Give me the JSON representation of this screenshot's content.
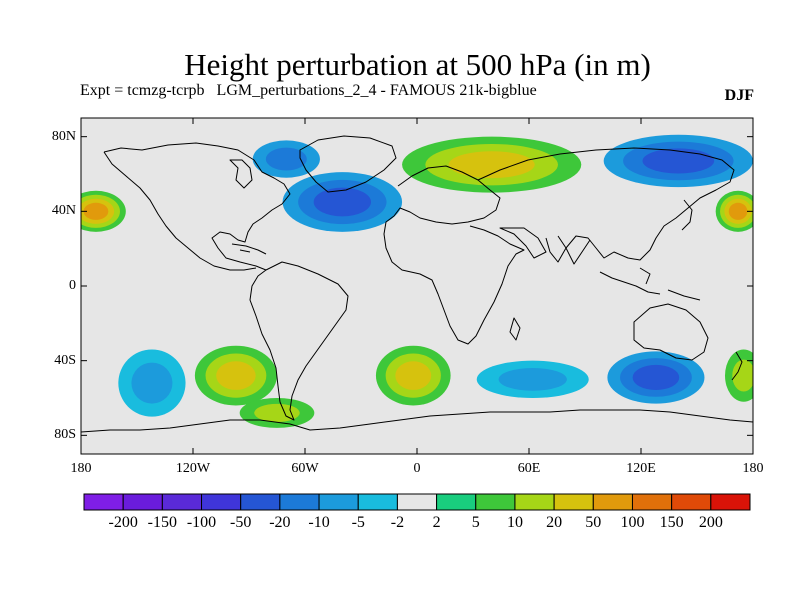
{
  "title": "Height perturbation at 500 hPa (in m)",
  "subtitle_expt": "Expt = tcmzg-tcrpb",
  "subtitle_source": "LGM_perturbations_2_4 - FAMOUS 21k-bigblue",
  "season": "DJF",
  "lat_ticks": [
    {
      "label": "80N",
      "value": 80
    },
    {
      "label": "40N",
      "value": 40
    },
    {
      "label": "0",
      "value": 0
    },
    {
      "label": "40S",
      "value": -40
    },
    {
      "label": "80S",
      "value": -80
    }
  ],
  "lon_ticks": [
    {
      "label": "180",
      "value": -180
    },
    {
      "label": "120W",
      "value": -120
    },
    {
      "label": "60W",
      "value": -60
    },
    {
      "label": "0",
      "value": 0
    },
    {
      "label": "60E",
      "value": 60
    },
    {
      "label": "120E",
      "value": 120
    },
    {
      "label": "180",
      "value": 180
    }
  ],
  "colorbar": {
    "colors": [
      "#7f1ee6",
      "#6a1cdc",
      "#5a2ad8",
      "#3f35d9",
      "#2556d4",
      "#1c7ad8",
      "#1c9bdc",
      "#19bcde",
      "#e6e6e6",
      "#19cd7e",
      "#3ec73a",
      "#a6d617",
      "#d6c20e",
      "#e19a0c",
      "#e0700a",
      "#df4a08",
      "#d91308"
    ],
    "labels": [
      "-200",
      "-150",
      "-100",
      "-50",
      "-20",
      "-10",
      "-5",
      "-2",
      "2",
      "5",
      "10",
      "20",
      "50",
      "100",
      "150",
      "200"
    ]
  },
  "chart_data": {
    "type": "heatmap",
    "title": "Height perturbation at 500 hPa (in m)",
    "variable": "500 hPa geopotential height perturbation",
    "units": "m",
    "season": "DJF",
    "experiment": "tcmzg-tcrpb",
    "xlim": [
      -180,
      180
    ],
    "ylim": [
      -90,
      90
    ],
    "background_level": "-2 to 2",
    "regions": [
      {
        "name": "North Atlantic low",
        "lon": -40,
        "lat": 45,
        "rx": 32,
        "ry": 16,
        "levels": [
          -5,
          -10,
          -20
        ]
      },
      {
        "name": "Arctic/Greenland negative",
        "lon": -70,
        "lat": 68,
        "rx": 18,
        "ry": 10,
        "levels": [
          -5,
          -10
        ]
      },
      {
        "name": "Eurasian high",
        "lon": 40,
        "lat": 65,
        "rx": 48,
        "ry": 15,
        "levels": [
          5,
          10,
          20
        ]
      },
      {
        "name": "North Pacific low (west)",
        "lon": 140,
        "lat": 67,
        "rx": 40,
        "ry": 14,
        "levels": [
          -5,
          -10,
          -20
        ]
      },
      {
        "name": "Northeast Pacific high",
        "lon": -172,
        "lat": 40,
        "rx": 16,
        "ry": 11,
        "levels": [
          5,
          10,
          20,
          50
        ]
      },
      {
        "name": "Northwest Pacific high",
        "lon": 172,
        "lat": 40,
        "rx": 12,
        "ry": 11,
        "levels": [
          5,
          10,
          20,
          50
        ]
      },
      {
        "name": "South Pacific high",
        "lon": -97,
        "lat": -48,
        "rx": 22,
        "ry": 16,
        "levels": [
          5,
          10,
          20
        ]
      },
      {
        "name": "South Pacific negative",
        "lon": -142,
        "lat": -52,
        "rx": 18,
        "ry": 18,
        "levels": [
          -2,
          -5
        ]
      },
      {
        "name": "South Atlantic high",
        "lon": -2,
        "lat": -48,
        "rx": 20,
        "ry": 16,
        "levels": [
          5,
          10,
          20
        ]
      },
      {
        "name": "South Indian negative",
        "lon": 62,
        "lat": -50,
        "rx": 30,
        "ry": 10,
        "levels": [
          -2,
          -5
        ]
      },
      {
        "name": "Southern Ocean low (Australia)",
        "lon": 128,
        "lat": -49,
        "rx": 26,
        "ry": 14,
        "levels": [
          -5,
          -10,
          -20
        ]
      },
      {
        "name": "Southwest Pacific high",
        "lon": 175,
        "lat": -48,
        "rx": 10,
        "ry": 14,
        "levels": [
          5,
          10
        ]
      },
      {
        "name": "Southeast Pacific/Antarctic high",
        "lon": -75,
        "lat": -68,
        "rx": 20,
        "ry": 8,
        "levels": [
          5,
          10
        ]
      }
    ]
  }
}
